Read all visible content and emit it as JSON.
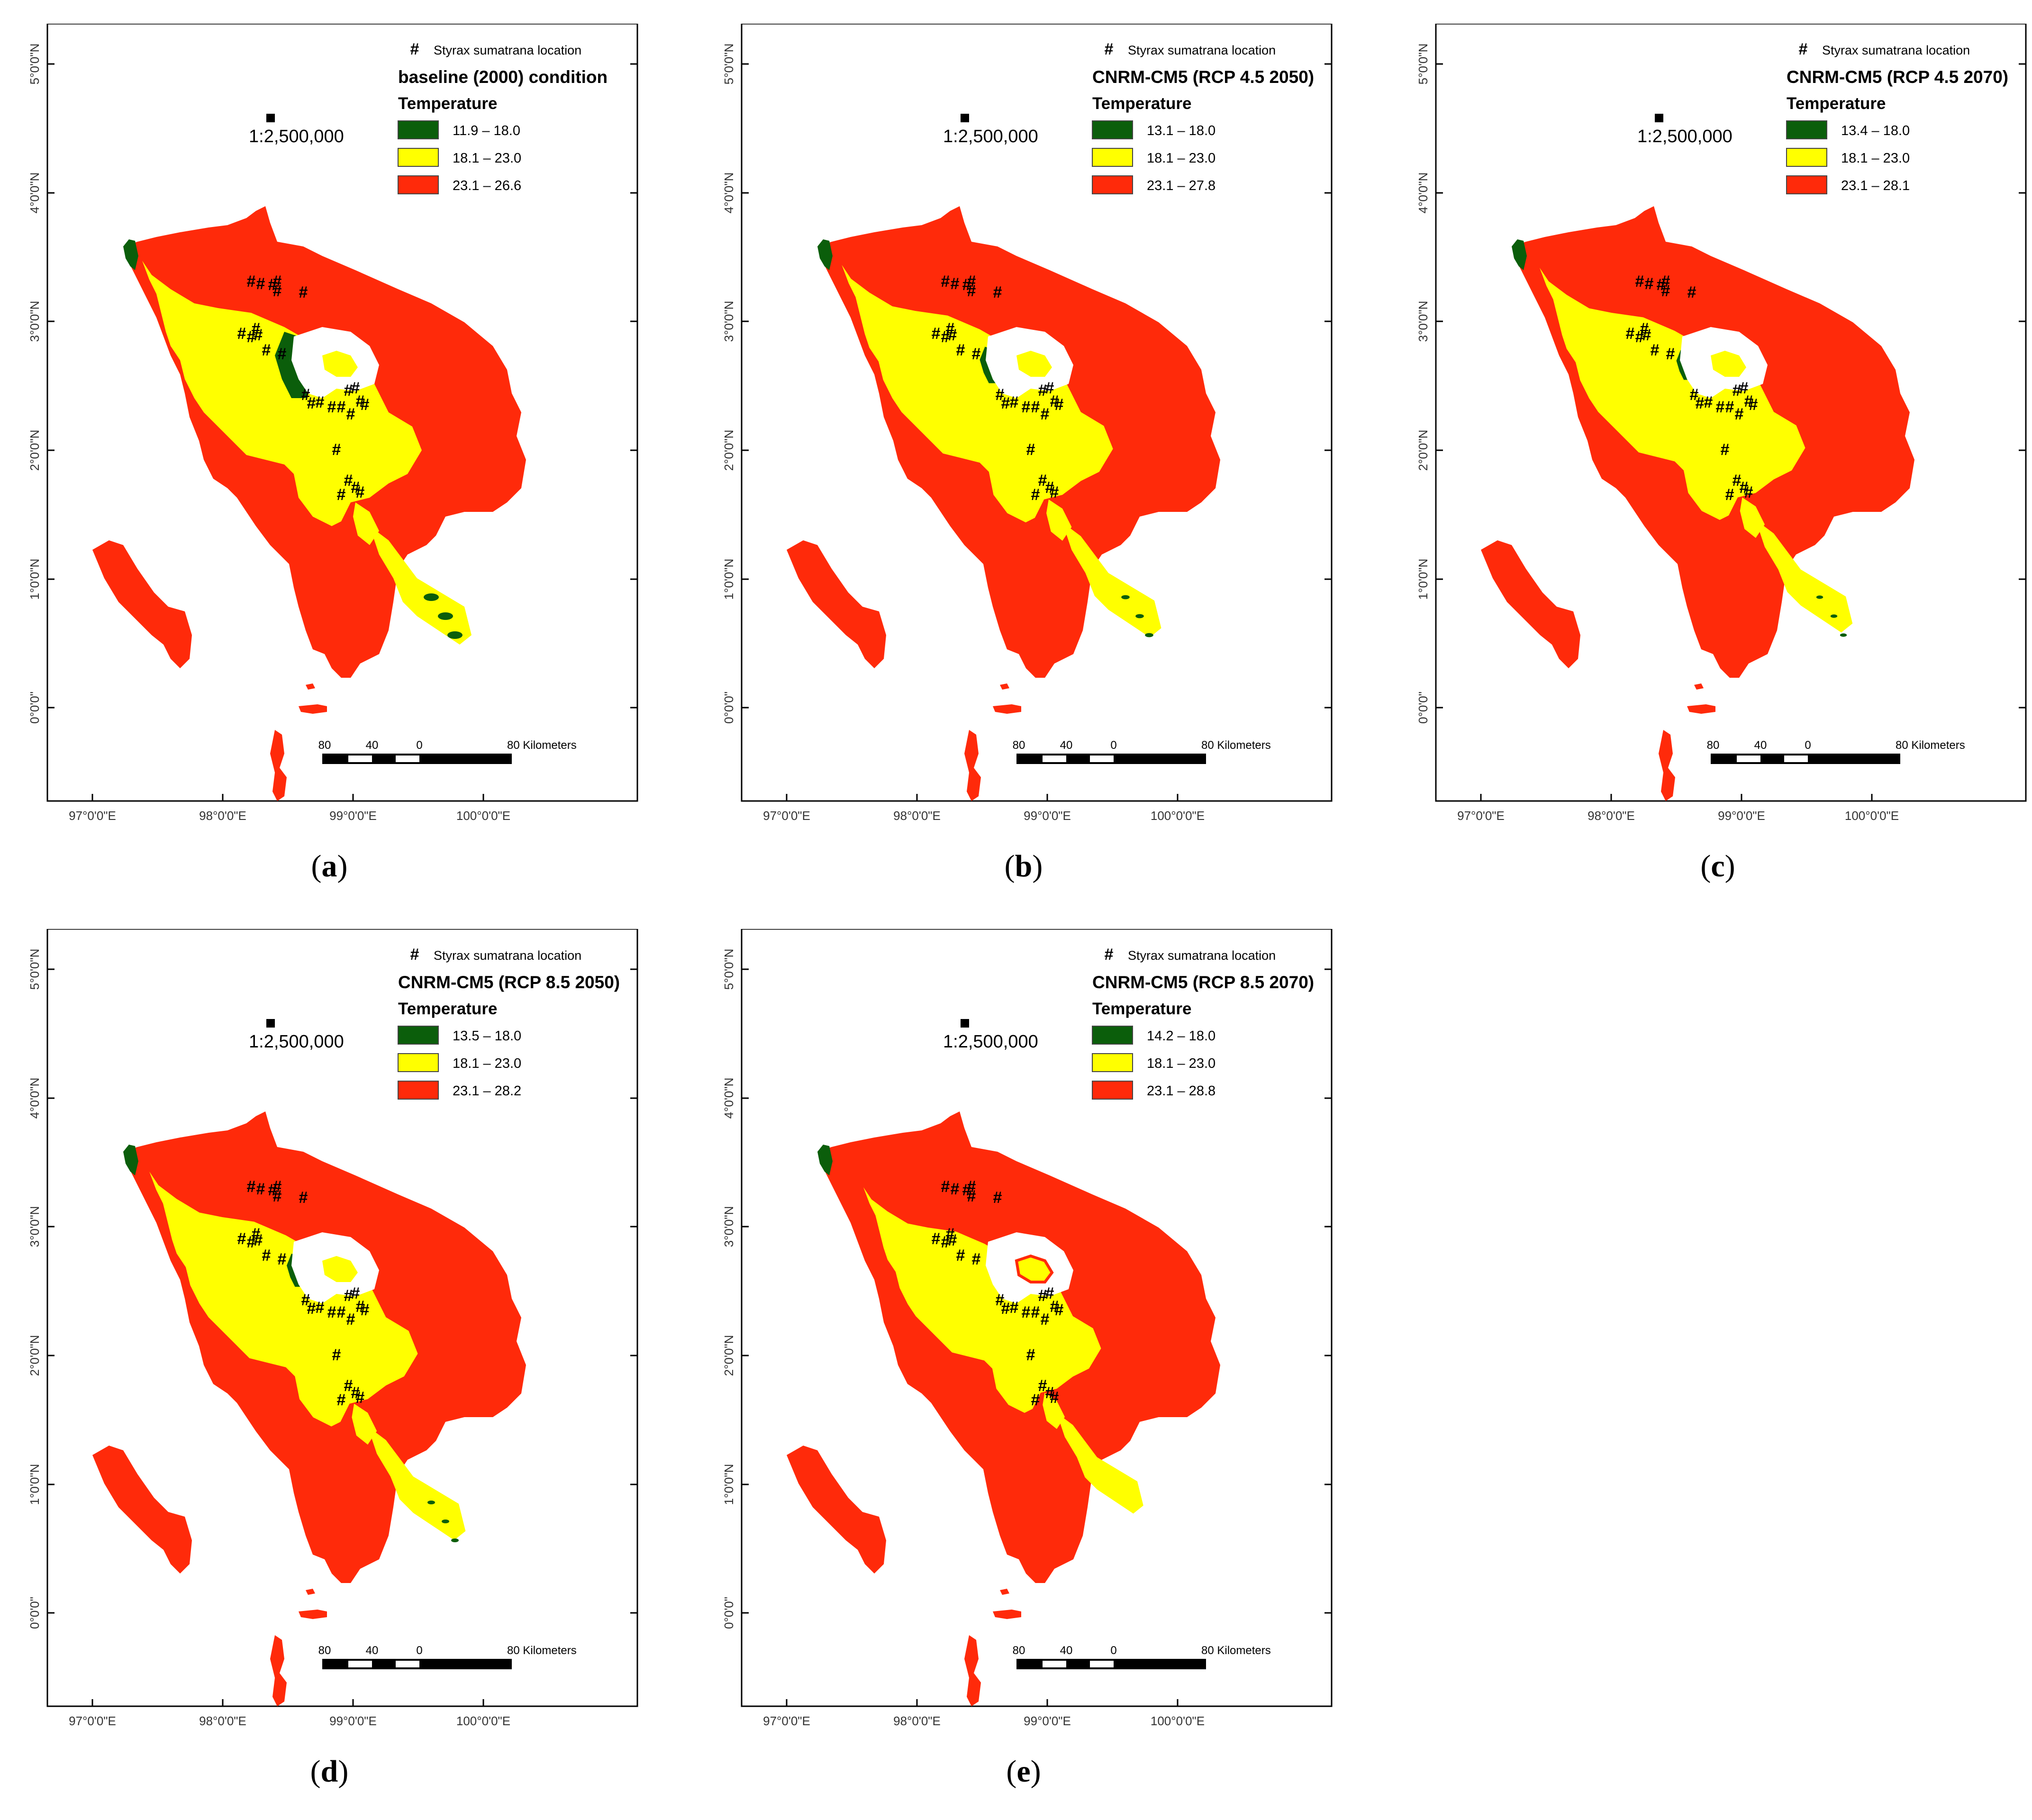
{
  "common": {
    "point_symbol": "#",
    "point_legend": "Styrax sumatrana location",
    "legend_heading": "Temperature",
    "scale_text": "1:2,500,000",
    "scalebar_labels": [
      "80",
      "40",
      "0",
      "80 Kilometers"
    ],
    "lat_labels": [
      "5°0'0\"N",
      "4°0'0\"N",
      "3°0'0\"N",
      "2°0'0\"N",
      "1°0'0\"N",
      "0°0'0\""
    ],
    "lon_labels": [
      "97°0'0\"E",
      "98°0'0\"E",
      "99°0'0\"E",
      "100°0'0\"E"
    ],
    "class_colors": [
      "#0b5e0b",
      "#ffff00",
      "#ff2a0a"
    ],
    "middle_class": "18.1 – 23.0",
    "upper_class_start": "23.1"
  },
  "panels": [
    {
      "letter": "a",
      "title": "baseline (2000) condition",
      "classes": [
        "11.9 – 18.0",
        "18.1 – 23.0",
        "23.1 – 26.6"
      ]
    },
    {
      "letter": "b",
      "title": "CNRM-CM5 (RCP 4.5 2050)",
      "classes": [
        "13.1 – 18.0",
        "18.1 – 23.0",
        "23.1 – 27.8"
      ]
    },
    {
      "letter": "c",
      "title": "CNRM-CM5 (RCP 4.5 2070)",
      "classes": [
        "13.4 – 18.0",
        "18.1 – 23.0",
        "23.1 – 28.1"
      ]
    },
    {
      "letter": "d",
      "title": "CNRM-CM5 (RCP 8.5 2050)",
      "classes": [
        "13.5 – 18.0",
        "18.1 – 23.0",
        "23.1 – 28.2"
      ]
    },
    {
      "letter": "e",
      "title": "CNRM-CM5 (RCP 8.5 2070)",
      "classes": [
        "14.2 – 18.0",
        "18.1 – 23.0",
        "23.1 – 28.8"
      ]
    }
  ]
}
